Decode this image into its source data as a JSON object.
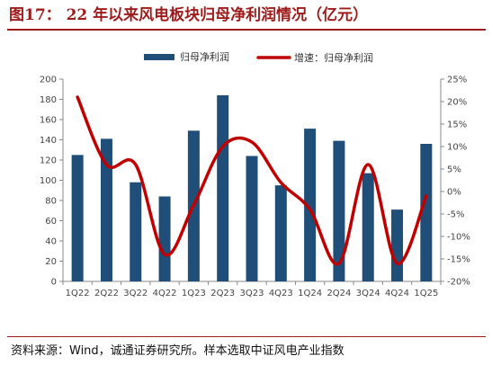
{
  "title": "图17：  22 年以来风电板块归母净利润情况（亿元）",
  "source": "资料来源：Wind，诚通证券研究所。样本选取中证风电产业指数",
  "chart_data": {
    "type": "bar+line",
    "categories": [
      "1Q22",
      "2Q22",
      "3Q22",
      "4Q22",
      "1Q23",
      "2Q23",
      "3Q23",
      "4Q23",
      "1Q24",
      "2Q24",
      "3Q24",
      "4Q24",
      "1Q25"
    ],
    "series": [
      {
        "name": "归母净利润",
        "type": "bar",
        "axis": "left",
        "color": "#1f4e79",
        "values": [
          125,
          141,
          98,
          84,
          149,
          184,
          124,
          95,
          151,
          139,
          107,
          71,
          136
        ]
      },
      {
        "name": "增速：归母净利润",
        "type": "line",
        "axis": "right",
        "color": "#c00000",
        "values": [
          21,
          6,
          6,
          -14,
          -3,
          10,
          11,
          2,
          -4,
          -16,
          6,
          -16,
          -1
        ]
      }
    ],
    "y_left": {
      "min": 0,
      "max": 200,
      "step": 20,
      "ticks": [
        "0",
        "20",
        "40",
        "60",
        "80",
        "100",
        "120",
        "140",
        "160",
        "180",
        "200"
      ]
    },
    "y_right": {
      "min": -20,
      "max": 25,
      "step": 5,
      "ticks": [
        "-20%",
        "-15%",
        "-10%",
        "-5%",
        "0%",
        "5%",
        "10%",
        "15%",
        "20%",
        "25%"
      ]
    },
    "legend": "top-center",
    "grid": false
  }
}
